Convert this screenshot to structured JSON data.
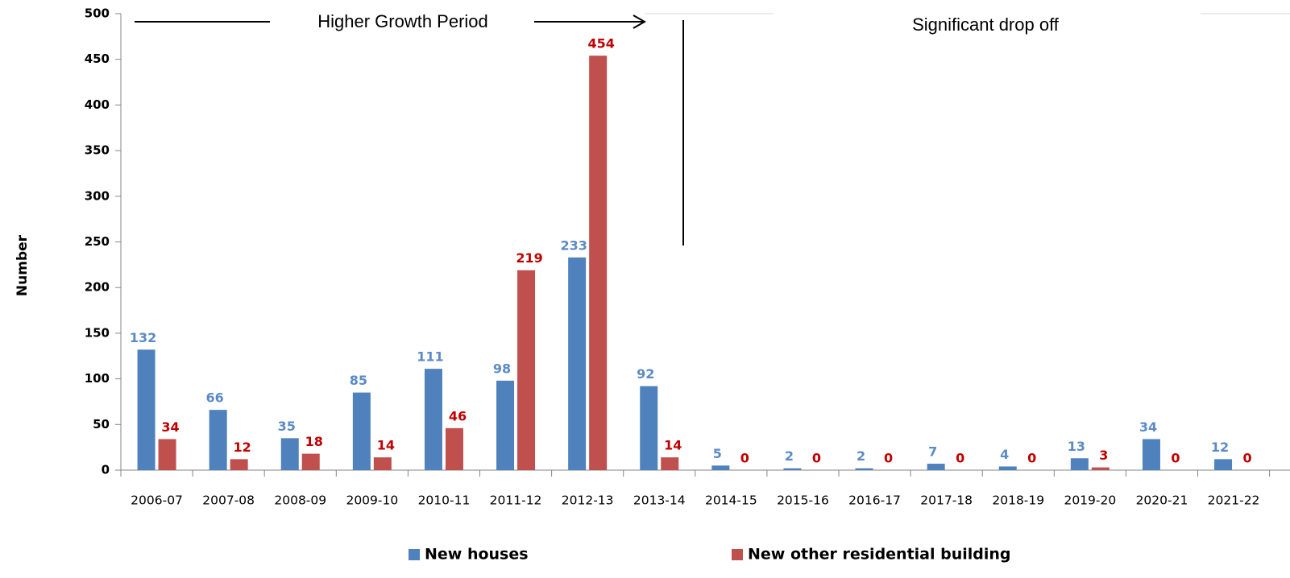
{
  "chart_data": {
    "type": "bar",
    "y_label": "Number",
    "annotations": [
      "Higher Growth Period",
      "Significant drop off"
    ],
    "categories": [
      "2006-07",
      "2007-08",
      "2008-09",
      "2009-10",
      "2010-11",
      "2011-12",
      "2012-13",
      "2013-14",
      "2014-15",
      "2015-16",
      "2016-17",
      "2017-18",
      "2018-19",
      "2019-20",
      "2020-21",
      "2021-22"
    ],
    "series": [
      {
        "name": "New houses",
        "color": "#4f81bd",
        "label_color": "#5b8ac6",
        "values": [
          132,
          66,
          35,
          85,
          111,
          98,
          233,
          92,
          5,
          2,
          2,
          7,
          4,
          13,
          34,
          12
        ]
      },
      {
        "name": "New other residential building",
        "color": "#c0504d",
        "label_color": "#c00000",
        "values": [
          34,
          12,
          18,
          14,
          46,
          219,
          454,
          14,
          0,
          0,
          0,
          0,
          0,
          3,
          0,
          0
        ]
      }
    ],
    "ylim": [
      0,
      500
    ],
    "yticks": [
      0,
      50,
      100,
      150,
      200,
      250,
      300,
      350,
      400,
      450,
      500
    ],
    "grid": false,
    "legend": "bottom"
  }
}
